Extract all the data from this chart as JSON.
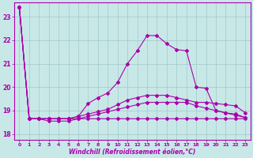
{
  "xlabel": "Windchill (Refroidissement éolien,°C)",
  "background_color": "#c8e8e8",
  "line_color": "#aa00aa",
  "x_values": [
    0,
    1,
    2,
    3,
    4,
    5,
    6,
    7,
    8,
    9,
    10,
    11,
    12,
    13,
    14,
    15,
    16,
    17,
    18,
    19,
    20,
    21,
    22,
    23
  ],
  "series": [
    [
      23.4,
      18.65,
      18.65,
      18.65,
      18.65,
      18.65,
      18.65,
      18.65,
      18.65,
      18.65,
      18.65,
      18.65,
      18.65,
      18.65,
      18.65,
      18.65,
      18.65,
      18.65,
      18.65,
      18.65,
      18.65,
      18.65,
      18.65,
      18.65
    ],
    [
      23.4,
      18.65,
      18.65,
      18.55,
      18.55,
      18.55,
      18.65,
      18.75,
      18.85,
      18.95,
      19.05,
      19.15,
      19.25,
      19.35,
      19.35,
      19.35,
      19.35,
      19.35,
      19.2,
      19.1,
      19.0,
      18.9,
      18.8,
      18.7
    ],
    [
      23.4,
      18.65,
      18.65,
      18.65,
      18.65,
      18.65,
      18.75,
      18.85,
      18.95,
      19.05,
      19.25,
      19.45,
      19.55,
      19.65,
      19.65,
      19.65,
      19.55,
      19.45,
      19.35,
      19.35,
      19.3,
      19.25,
      19.2,
      18.9
    ],
    [
      23.4,
      18.65,
      18.65,
      18.65,
      18.65,
      18.65,
      18.75,
      19.3,
      19.55,
      19.75,
      20.2,
      21.0,
      21.55,
      22.2,
      22.2,
      21.85,
      21.6,
      21.55,
      20.0,
      19.95,
      19.0,
      18.9,
      18.85,
      18.7
    ]
  ],
  "ylim": [
    17.75,
    23.6
  ],
  "xlim": [
    -0.5,
    23.5
  ],
  "yticks": [
    18,
    19,
    20,
    21,
    22,
    23
  ],
  "xticks": [
    0,
    1,
    2,
    3,
    4,
    5,
    6,
    7,
    8,
    9,
    10,
    11,
    12,
    13,
    14,
    15,
    16,
    17,
    18,
    19,
    20,
    21,
    22,
    23
  ],
  "figsize": [
    3.2,
    2.0
  ],
  "dpi": 100
}
